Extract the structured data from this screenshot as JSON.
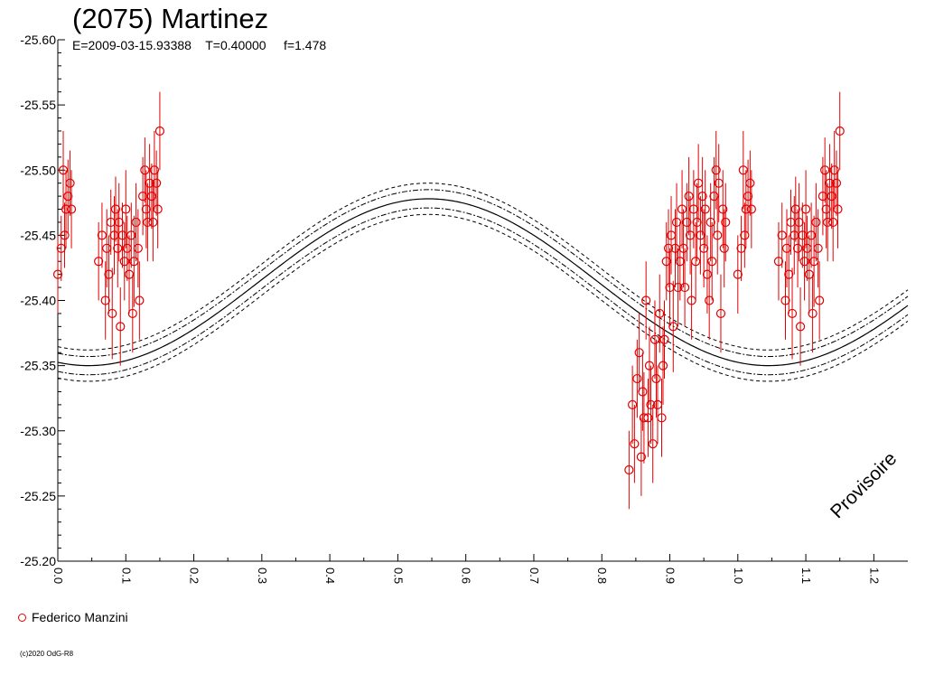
{
  "header": {
    "title": "(2075) Martinez",
    "subtitle": "E=2009-03-15.93388    T=0.40000     f=1.478"
  },
  "legend": {
    "label": "Federico Manzini"
  },
  "copyright": "(c)2020 OdG-R8",
  "watermark": "Provisoire",
  "colors": {
    "data": "#e00000",
    "curve": "#000000",
    "background": "#ffffff"
  },
  "chart_data": {
    "type": "scatter",
    "title": "(2075) Martinez",
    "xlabel": "",
    "ylabel": "",
    "xlim": [
      0.0,
      1.25
    ],
    "ylim": [
      -25.6,
      -25.2
    ],
    "y_inverted": true,
    "x_ticks": [
      "0.0",
      "0.1",
      "0.2",
      "0.3",
      "0.4",
      "0.5",
      "0.6",
      "0.7",
      "0.8",
      "0.9",
      "1.0",
      "1.1",
      "1.2"
    ],
    "y_ticks": [
      "-25.60",
      "-25.55",
      "-25.50",
      "-25.45",
      "-25.40",
      "-25.35",
      "-25.30",
      "-25.25",
      "-25.20"
    ],
    "fit_curve": {
      "mean": -25.414,
      "amplitude": 0.064,
      "peak_phase": 0.545,
      "period_phase": 1.0,
      "inner_band": 0.007,
      "outer_band": 0.012
    },
    "series": [
      {
        "name": "Federico Manzini",
        "marker": "open-circle",
        "points": [
          [
            0.0,
            -25.42,
            0.03
          ],
          [
            0.005,
            -25.44,
            0.025
          ],
          [
            0.008,
            -25.5,
            0.03
          ],
          [
            0.01,
            -25.45,
            0.025
          ],
          [
            0.012,
            -25.47,
            0.03
          ],
          [
            0.015,
            -25.48,
            0.028
          ],
          [
            0.018,
            -25.49,
            0.025
          ],
          [
            0.02,
            -25.47,
            0.03
          ],
          [
            0.06,
            -25.43,
            0.03
          ],
          [
            0.065,
            -25.45,
            0.025
          ],
          [
            0.07,
            -25.4,
            0.03
          ],
          [
            0.072,
            -25.44,
            0.03
          ],
          [
            0.075,
            -25.42,
            0.03
          ],
          [
            0.078,
            -25.46,
            0.025
          ],
          [
            0.08,
            -25.39,
            0.035
          ],
          [
            0.083,
            -25.45,
            0.03
          ],
          [
            0.085,
            -25.47,
            0.025
          ],
          [
            0.088,
            -25.44,
            0.03
          ],
          [
            0.09,
            -25.46,
            0.03
          ],
          [
            0.092,
            -25.38,
            0.03
          ],
          [
            0.095,
            -25.45,
            0.025
          ],
          [
            0.098,
            -25.43,
            0.03
          ],
          [
            0.1,
            -25.47,
            0.03
          ],
          [
            0.102,
            -25.44,
            0.025
          ],
          [
            0.105,
            -25.42,
            0.03
          ],
          [
            0.108,
            -25.45,
            0.025
          ],
          [
            0.11,
            -25.39,
            0.03
          ],
          [
            0.112,
            -25.43,
            0.035
          ],
          [
            0.115,
            -25.46,
            0.03
          ],
          [
            0.118,
            -25.44,
            0.03
          ],
          [
            0.12,
            -25.4,
            0.03
          ],
          [
            0.125,
            -25.48,
            0.03
          ],
          [
            0.128,
            -25.5,
            0.025
          ],
          [
            0.13,
            -25.47,
            0.03
          ],
          [
            0.132,
            -25.46,
            0.03
          ],
          [
            0.135,
            -25.49,
            0.03
          ],
          [
            0.138,
            -25.48,
            0.025
          ],
          [
            0.14,
            -25.46,
            0.03
          ],
          [
            0.142,
            -25.5,
            0.03
          ],
          [
            0.145,
            -25.49,
            0.025
          ],
          [
            0.147,
            -25.47,
            0.03
          ],
          [
            0.15,
            -25.53,
            0.03
          ],
          [
            0.84,
            -25.27,
            0.03
          ],
          [
            0.845,
            -25.32,
            0.03
          ],
          [
            0.848,
            -25.29,
            0.03
          ],
          [
            0.852,
            -25.34,
            0.03
          ],
          [
            0.855,
            -25.36,
            0.03
          ],
          [
            0.858,
            -25.28,
            0.03
          ],
          [
            0.86,
            -25.33,
            0.03
          ],
          [
            0.862,
            -25.31,
            0.035
          ],
          [
            0.865,
            -25.4,
            0.03
          ],
          [
            0.868,
            -25.31,
            0.03
          ],
          [
            0.87,
            -25.35,
            0.03
          ],
          [
            0.872,
            -25.32,
            0.03
          ],
          [
            0.875,
            -25.29,
            0.03
          ],
          [
            0.878,
            -25.37,
            0.03
          ],
          [
            0.88,
            -25.34,
            0.03
          ],
          [
            0.882,
            -25.32,
            0.03
          ],
          [
            0.885,
            -25.39,
            0.03
          ],
          [
            0.888,
            -25.31,
            0.03
          ],
          [
            0.89,
            -25.35,
            0.03
          ],
          [
            0.892,
            -25.37,
            0.03
          ],
          [
            0.895,
            -25.43,
            0.03
          ],
          [
            0.898,
            -25.44,
            0.03
          ],
          [
            0.9,
            -25.41,
            0.03
          ],
          [
            0.902,
            -25.45,
            0.03
          ],
          [
            0.905,
            -25.38,
            0.035
          ],
          [
            0.908,
            -25.44,
            0.03
          ],
          [
            0.91,
            -25.46,
            0.03
          ],
          [
            0.912,
            -25.41,
            0.03
          ],
          [
            0.915,
            -25.43,
            0.03
          ],
          [
            0.918,
            -25.47,
            0.03
          ],
          [
            0.92,
            -25.44,
            0.03
          ],
          [
            0.922,
            -25.41,
            0.03
          ],
          [
            0.925,
            -25.46,
            0.03
          ],
          [
            0.928,
            -25.48,
            0.03
          ],
          [
            0.93,
            -25.45,
            0.03
          ],
          [
            0.932,
            -25.4,
            0.03
          ],
          [
            0.935,
            -25.47,
            0.03
          ],
          [
            0.938,
            -25.43,
            0.03
          ],
          [
            0.94,
            -25.46,
            0.03
          ],
          [
            0.942,
            -25.49,
            0.03
          ],
          [
            0.945,
            -25.45,
            0.03
          ],
          [
            0.948,
            -25.48,
            0.03
          ],
          [
            0.95,
            -25.44,
            0.03
          ],
          [
            0.952,
            -25.47,
            0.03
          ],
          [
            0.955,
            -25.42,
            0.03
          ],
          [
            0.958,
            -25.4,
            0.03
          ],
          [
            0.96,
            -25.46,
            0.03
          ],
          [
            0.962,
            -25.43,
            0.03
          ],
          [
            0.965,
            -25.48,
            0.03
          ],
          [
            0.968,
            -25.5,
            0.03
          ],
          [
            0.97,
            -25.45,
            0.03
          ],
          [
            0.972,
            -25.49,
            0.03
          ],
          [
            0.975,
            -25.39,
            0.03
          ],
          [
            0.978,
            -25.47,
            0.03
          ],
          [
            0.98,
            -25.44,
            0.03
          ],
          [
            0.982,
            -25.46,
            0.03
          ],
          [
            1.0,
            -25.42,
            0.03
          ],
          [
            1.005,
            -25.44,
            0.025
          ],
          [
            1.008,
            -25.5,
            0.03
          ],
          [
            1.01,
            -25.45,
            0.025
          ],
          [
            1.012,
            -25.47,
            0.03
          ],
          [
            1.015,
            -25.48,
            0.028
          ],
          [
            1.018,
            -25.49,
            0.025
          ],
          [
            1.02,
            -25.47,
            0.03
          ],
          [
            1.06,
            -25.43,
            0.03
          ],
          [
            1.065,
            -25.45,
            0.025
          ],
          [
            1.07,
            -25.4,
            0.03
          ],
          [
            1.072,
            -25.44,
            0.03
          ],
          [
            1.075,
            -25.42,
            0.03
          ],
          [
            1.078,
            -25.46,
            0.025
          ],
          [
            1.08,
            -25.39,
            0.035
          ],
          [
            1.083,
            -25.45,
            0.03
          ],
          [
            1.085,
            -25.47,
            0.025
          ],
          [
            1.088,
            -25.44,
            0.03
          ],
          [
            1.09,
            -25.46,
            0.03
          ],
          [
            1.092,
            -25.38,
            0.03
          ],
          [
            1.095,
            -25.45,
            0.025
          ],
          [
            1.098,
            -25.43,
            0.03
          ],
          [
            1.1,
            -25.47,
            0.03
          ],
          [
            1.102,
            -25.44,
            0.025
          ],
          [
            1.105,
            -25.42,
            0.03
          ],
          [
            1.108,
            -25.45,
            0.025
          ],
          [
            1.11,
            -25.39,
            0.03
          ],
          [
            1.112,
            -25.43,
            0.035
          ],
          [
            1.115,
            -25.46,
            0.03
          ],
          [
            1.118,
            -25.44,
            0.03
          ],
          [
            1.12,
            -25.4,
            0.03
          ],
          [
            1.125,
            -25.48,
            0.03
          ],
          [
            1.128,
            -25.5,
            0.025
          ],
          [
            1.13,
            -25.47,
            0.03
          ],
          [
            1.132,
            -25.46,
            0.03
          ],
          [
            1.135,
            -25.49,
            0.03
          ],
          [
            1.138,
            -25.48,
            0.025
          ],
          [
            1.14,
            -25.46,
            0.03
          ],
          [
            1.142,
            -25.5,
            0.03
          ],
          [
            1.145,
            -25.49,
            0.025
          ],
          [
            1.147,
            -25.47,
            0.03
          ],
          [
            1.15,
            -25.53,
            0.03
          ]
        ]
      }
    ]
  }
}
